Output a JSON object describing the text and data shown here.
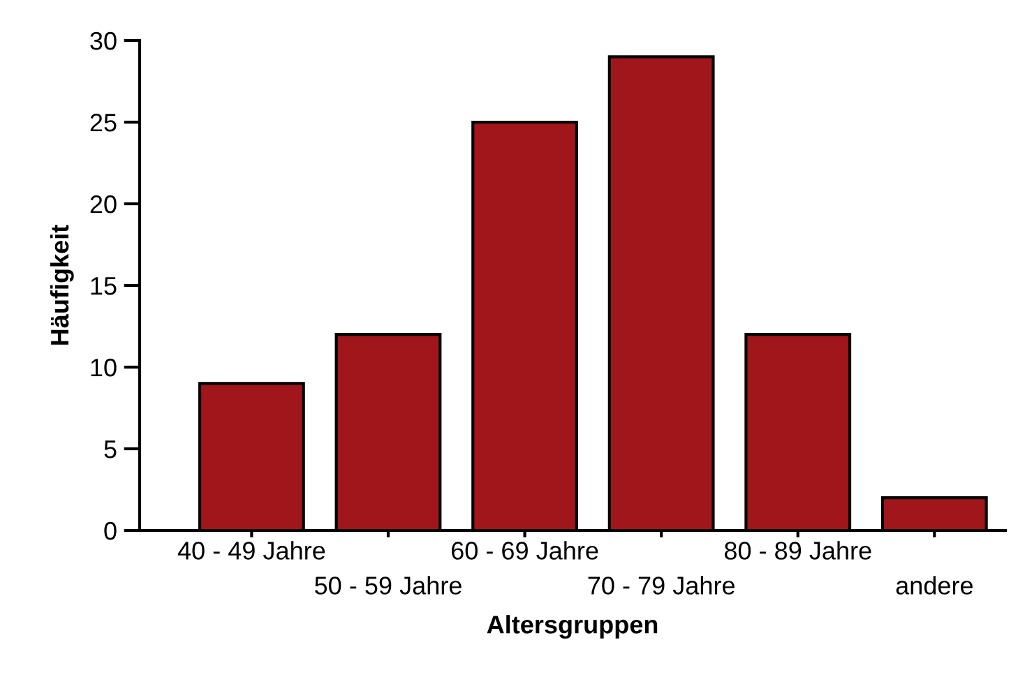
{
  "chart_data": {
    "type": "bar",
    "xlabel": "Altersgruppen",
    "ylabel": "Häufigkeit",
    "categories": [
      "40 - 49 Jahre",
      "50 - 59 Jahre",
      "60 - 69 Jahre",
      "70 - 79 Jahre",
      "80 - 89 Jahre",
      "andere"
    ],
    "values": [
      9,
      12,
      25,
      29,
      12,
      2
    ],
    "color": "#a0161b",
    "ylim": [
      0,
      30
    ],
    "yticks": [
      0,
      5,
      10,
      15,
      20,
      25,
      30
    ],
    "grid": false,
    "legend": false
  }
}
